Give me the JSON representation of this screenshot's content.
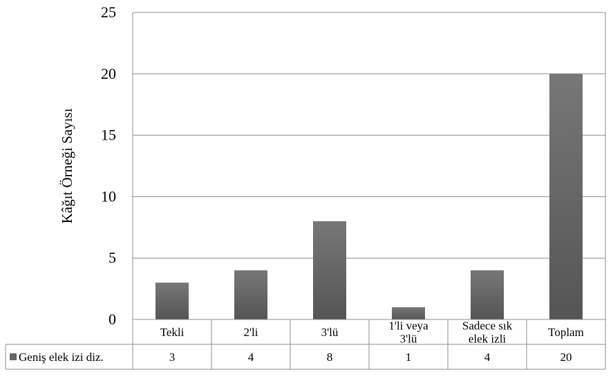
{
  "chart_data": {
    "type": "bar",
    "categories": [
      "Tekli",
      "2'li",
      "3'lü",
      "1'li veya\n3'lü",
      "Sadece sık\nelek izli",
      "Toplam"
    ],
    "series": [
      {
        "name": "Geniş elek izi diz.",
        "values": [
          3,
          4,
          8,
          1,
          4,
          20
        ]
      }
    ],
    "ylabel": "Kâğıt Örneği Sayısı",
    "xlabel": "",
    "title": "",
    "ylim": [
      0,
      25
    ],
    "yticks": [
      0,
      5,
      10,
      15,
      20,
      25
    ],
    "grid": true,
    "legend": "data-table-left",
    "bar_color": "#666666",
    "bar_color_dark": "#555555",
    "bar_color_light": "#777777",
    "grid_color": "#8c8c8c"
  }
}
